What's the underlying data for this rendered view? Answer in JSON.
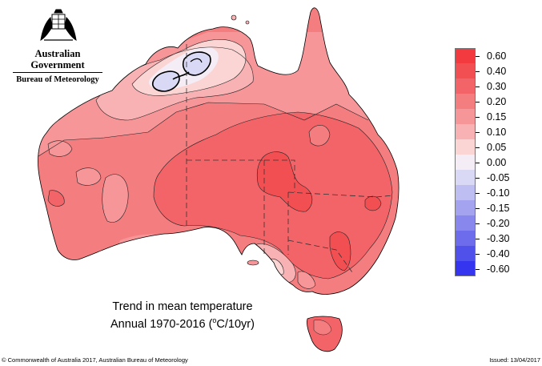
{
  "header": {
    "government": "Australian Government",
    "bureau": "Bureau of Meteorology"
  },
  "map": {
    "title_line1": "Trend in mean temperature",
    "title_line2_prefix": "Annual 1970-2016 (",
    "title_unit_sup": "o",
    "title_unit_rest": "C/10yr)"
  },
  "legend": {
    "items": [
      {
        "label": "0.60",
        "color": "#f23a3f"
      },
      {
        "label": "0.40",
        "color": "#f24f53"
      },
      {
        "label": "0.30",
        "color": "#f26468"
      },
      {
        "label": "0.20",
        "color": "#f47d80"
      },
      {
        "label": "0.15",
        "color": "#f69699"
      },
      {
        "label": "0.10",
        "color": "#f8b2b4"
      },
      {
        "label": "0.05",
        "color": "#fbd4d4"
      },
      {
        "label": "0.00",
        "color": "#f5edf5"
      },
      {
        "label": "-0.05",
        "color": "#d9d9f5"
      },
      {
        "label": "-0.10",
        "color": "#bebef2"
      },
      {
        "label": "-0.15",
        "color": "#a3a3f0"
      },
      {
        "label": "-0.20",
        "color": "#8787ee"
      },
      {
        "label": "-0.30",
        "color": "#6c6cec"
      },
      {
        "label": "-0.40",
        "color": "#5050ea"
      },
      {
        "label": "-0.60",
        "color": "#3535f0"
      }
    ]
  },
  "footer": {
    "copyright": "© Commonwealth of Australia 2017, Australian Bureau of Meteorology",
    "issued": "Issued: 13/04/2017"
  }
}
